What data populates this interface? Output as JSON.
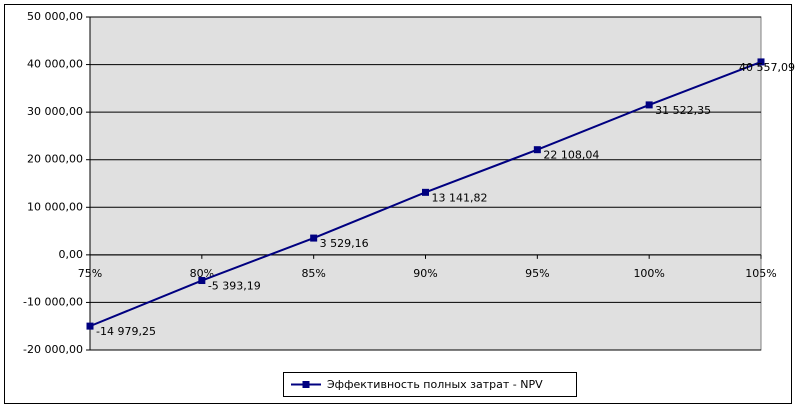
{
  "chart_data": {
    "type": "line",
    "categories": [
      "75%",
      "80%",
      "85%",
      "90%",
      "95%",
      "100%",
      "105%"
    ],
    "series": [
      {
        "name": "Эффективность полных затрат - NPV",
        "color": "#000080",
        "values": [
          -14979.25,
          -5393.19,
          3529.16,
          13141.82,
          22108.04,
          31522.35,
          40557.09
        ],
        "value_labels": [
          "-14 979,25",
          "-5 393,19",
          "3 529,16",
          "13 141,82",
          "22 108,04",
          "31 522,35",
          "40 557,09"
        ]
      }
    ],
    "ylim": [
      -20000,
      50000
    ],
    "yticks": [
      {
        "value": -20000,
        "label": "-20 000,00"
      },
      {
        "value": -10000,
        "label": "-10 000,00"
      },
      {
        "value": 0,
        "label": "0,00"
      },
      {
        "value": 10000,
        "label": "10 000,00"
      },
      {
        "value": 20000,
        "label": "20 000,00"
      },
      {
        "value": 30000,
        "label": "30 000,00"
      },
      {
        "value": 40000,
        "label": "40 000,00"
      },
      {
        "value": 50000,
        "label": "50 000,00"
      }
    ],
    "grid": true,
    "plot_background": "#e0e0e0",
    "legend": "bottom"
  }
}
